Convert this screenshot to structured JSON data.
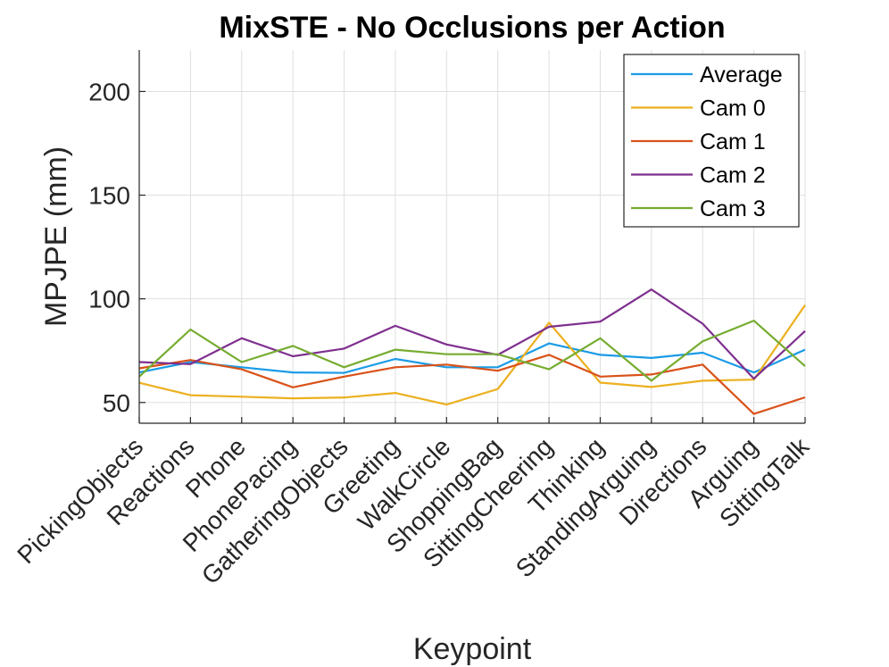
{
  "chart_data": {
    "type": "line",
    "title": "MixSTE - No Occlusions per Action",
    "xlabel": "Keypoint",
    "ylabel": "MPJPE (mm)",
    "ylim": [
      40,
      220
    ],
    "yticks": [
      50,
      100,
      150,
      200
    ],
    "grid": true,
    "legend_position": "top-right",
    "categories": [
      "PickingObjects",
      "Reactions",
      "Phone",
      "PhonePacing",
      "GatheringObjects",
      "Greeting",
      "WalkCircle",
      "ShoppingBag",
      "SittingCheering",
      "Thinking",
      "StandingArguing",
      "Directions",
      "Arguing",
      "SittingTalk"
    ],
    "series": [
      {
        "name": "Average",
        "color": "#1a9be6",
        "values": [
          64.5,
          69.5,
          67,
          64.5,
          64.3,
          71,
          67,
          67,
          78.5,
          73,
          71.5,
          74,
          64.5,
          75.5
        ]
      },
      {
        "name": "Cam 0",
        "color": "#ecb01f",
        "values": [
          59.5,
          53.5,
          52.8,
          52,
          52.4,
          54.6,
          49,
          56.5,
          88.5,
          59.6,
          57.5,
          60.5,
          61,
          97
        ]
      },
      {
        "name": "Cam 1",
        "color": "#d95219",
        "values": [
          66.5,
          70.5,
          66,
          57.3,
          62.5,
          67,
          68.3,
          65.3,
          73,
          62.5,
          63.5,
          68.3,
          44.5,
          52.5
        ]
      },
      {
        "name": "Cam 2",
        "color": "#7e2f8e",
        "values": [
          69.5,
          68.5,
          81,
          72.3,
          76,
          87,
          78,
          73,
          86.5,
          89,
          104.5,
          88,
          61.5,
          84.5
        ]
      },
      {
        "name": "Cam 3",
        "color": "#76ac30",
        "values": [
          62.5,
          85.2,
          69.5,
          77.3,
          67,
          75.5,
          73.3,
          73.3,
          66,
          81,
          60.5,
          79.5,
          89.5,
          67.5
        ]
      }
    ]
  }
}
